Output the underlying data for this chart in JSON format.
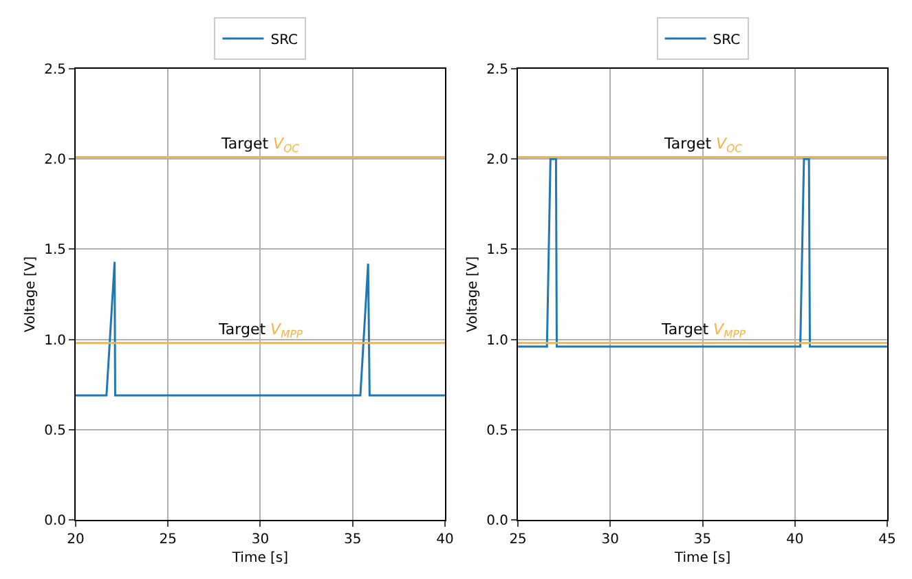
{
  "chart_data": [
    {
      "type": "line",
      "xlabel": "Time [s]",
      "ylabel": "Voltage [V]",
      "legend": "top",
      "grid": true,
      "xlim": [
        20,
        40
      ],
      "xticks": [
        20,
        25,
        30,
        35,
        40
      ],
      "ylim": [
        0,
        2.5
      ],
      "yticks": [
        {
          "value": 0,
          "label": "0.0"
        },
        0.5,
        {
          "value": 1,
          "label": "1.0"
        },
        1.5,
        {
          "value": 2,
          "label": "2.0"
        },
        2.5
      ],
      "series": [
        {
          "name": "SRC",
          "color": "#1f77b4",
          "x": [
            20,
            21.67,
            22.11,
            22.14,
            35.42,
            35.84,
            35.92,
            40
          ],
          "values": [
            0.69,
            0.69,
            1.43,
            0.69,
            0.69,
            1.42,
            0.69,
            0.69
          ]
        }
      ],
      "ref_lines": [
        {
          "axis": "y",
          "value": 2.01,
          "label": "Target V$_{OC}$",
          "color": "#f5b342"
        },
        {
          "axis": "y",
          "value": 0.98,
          "label": "Target V$_{MPP}$",
          "color": "#f5b342"
        }
      ]
    },
    {
      "type": "line",
      "xlabel": "Time [s]",
      "ylabel": "Voltage [V]",
      "legend": "top",
      "grid": true,
      "xlim": [
        25,
        45
      ],
      "xticks": [
        25,
        30,
        35,
        40,
        45
      ],
      "ylim": [
        0,
        2.5
      ],
      "yticks": [
        {
          "value": 0,
          "label": "0.0"
        },
        0.5,
        {
          "value": 1,
          "label": "1.0"
        },
        1.5,
        {
          "value": 2,
          "label": "2.0"
        },
        2.5
      ],
      "series": [
        {
          "name": "SRC",
          "color": "#1f77b4",
          "x": [
            25,
            26.57,
            26.76,
            27.06,
            27.1,
            40.29,
            40.49,
            40.76,
            40.81,
            45
          ],
          "values": [
            0.96,
            0.96,
            2.0,
            2.0,
            0.96,
            0.96,
            2.0,
            2.0,
            0.96,
            0.96
          ]
        }
      ],
      "ref_lines": [
        {
          "axis": "y",
          "value": 2.01,
          "label": "Target V$_{OC}$",
          "color": "#f5b342"
        },
        {
          "axis": "y",
          "value": 0.98,
          "label": "Target V$_{MPP}$",
          "color": "#f5b342"
        }
      ]
    }
  ]
}
